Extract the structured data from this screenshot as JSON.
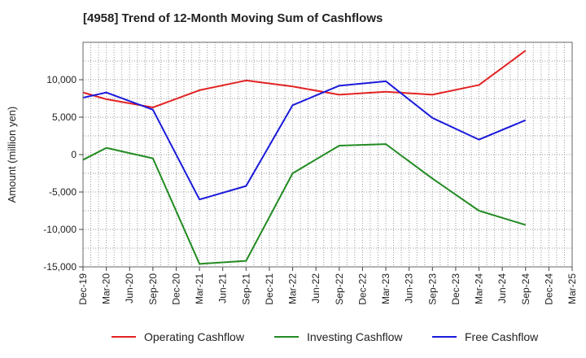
{
  "chart_data": {
    "type": "line",
    "title": "[4958]  Trend of 12-Month Moving Sum of Cashflows",
    "xlabel": "",
    "ylabel": "Amount (million yen)",
    "categories": [
      "Dec-19",
      "Mar-20",
      "Jun-20",
      "Sep-20",
      "Dec-20",
      "Mar-21",
      "Jun-21",
      "Sep-21",
      "Dec-21",
      "Mar-22",
      "Jun-22",
      "Sep-22",
      "Dec-22",
      "Mar-23",
      "Jun-23",
      "Sep-23",
      "Dec-23",
      "Mar-24",
      "Jun-24",
      "Sep-24",
      "Dec-24",
      "Mar-25"
    ],
    "ylim": [
      -15000,
      15000
    ],
    "yticks": [
      -15000,
      -10000,
      -5000,
      0,
      5000,
      10000
    ],
    "ytick_labels": [
      "-15,000",
      "-10,000",
      "-5,000",
      "0",
      "5,000",
      "10,000"
    ],
    "grid": true,
    "legend_position": "bottom",
    "series": [
      {
        "name": "Operating Cashflow",
        "color": "#e32222",
        "points": [
          [
            "Dec-19",
            8300
          ],
          [
            "Mar-20",
            7400
          ],
          [
            "Sep-20",
            6300
          ],
          [
            "Mar-21",
            8600
          ],
          [
            "Sep-21",
            9900
          ],
          [
            "Mar-22",
            9100
          ],
          [
            "Sep-22",
            8000
          ],
          [
            "Mar-23",
            8400
          ],
          [
            "Sep-23",
            8000
          ],
          [
            "Mar-24",
            9300
          ],
          [
            "Sep-24",
            13900
          ]
        ]
      },
      {
        "name": "Investing Cashflow",
        "color": "#228b22",
        "points": [
          [
            "Dec-19",
            -700
          ],
          [
            "Mar-20",
            900
          ],
          [
            "Sep-20",
            -500
          ],
          [
            "Mar-21",
            -14600
          ],
          [
            "Sep-21",
            -14200
          ],
          [
            "Mar-22",
            -2500
          ],
          [
            "Sep-22",
            1200
          ],
          [
            "Mar-23",
            1400
          ],
          [
            "Sep-23",
            -3200
          ],
          [
            "Mar-24",
            -7500
          ],
          [
            "Sep-24",
            -9400
          ]
        ]
      },
      {
        "name": "Free Cashflow",
        "color": "#1a1adc",
        "points": [
          [
            "Dec-19",
            7600
          ],
          [
            "Mar-20",
            8300
          ],
          [
            "Sep-20",
            6000
          ],
          [
            "Mar-21",
            -6000
          ],
          [
            "Sep-21",
            -4200
          ],
          [
            "Mar-22",
            6600
          ],
          [
            "Sep-22",
            9200
          ],
          [
            "Mar-23",
            9800
          ],
          [
            "Sep-23",
            4900
          ],
          [
            "Mar-24",
            2000
          ],
          [
            "Sep-24",
            4600
          ]
        ]
      }
    ]
  }
}
